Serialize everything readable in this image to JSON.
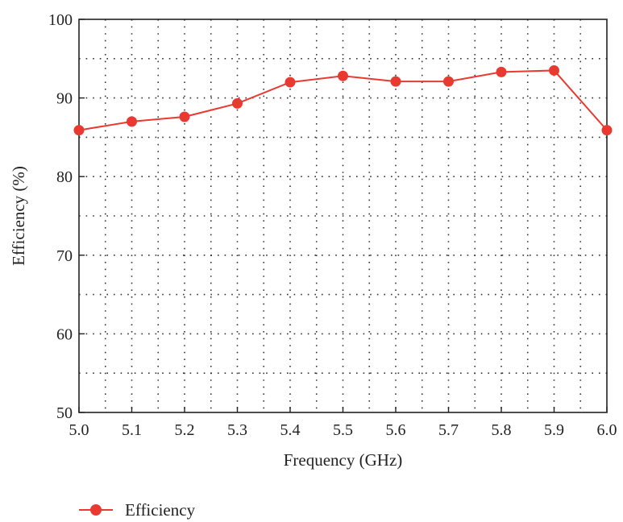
{
  "chart_data": {
    "type": "line",
    "x": [
      5.0,
      5.1,
      5.2,
      5.3,
      5.4,
      5.5,
      5.6,
      5.7,
      5.8,
      5.9,
      6.0
    ],
    "series": [
      {
        "name": "Efficiency",
        "values": [
          85.9,
          87.0,
          87.6,
          89.3,
          92.0,
          92.8,
          92.1,
          92.1,
          93.3,
          93.5,
          85.9
        ],
        "color": "#e83a30"
      }
    ],
    "xlabel": "Frequency (GHz)",
    "ylabel": "Efficiency (%)",
    "xlim": [
      5.0,
      6.0
    ],
    "ylim": [
      50,
      100
    ],
    "x_ticks": [
      "5.0",
      "5.1",
      "5.2",
      "5.3",
      "5.4",
      "5.5",
      "5.6",
      "5.7",
      "5.8",
      "5.9",
      "6.0"
    ],
    "y_ticks": [
      "50",
      "60",
      "70",
      "80",
      "90",
      "100"
    ],
    "grid": true,
    "grid_style": "dotted",
    "legend_position": "bottom-left"
  }
}
